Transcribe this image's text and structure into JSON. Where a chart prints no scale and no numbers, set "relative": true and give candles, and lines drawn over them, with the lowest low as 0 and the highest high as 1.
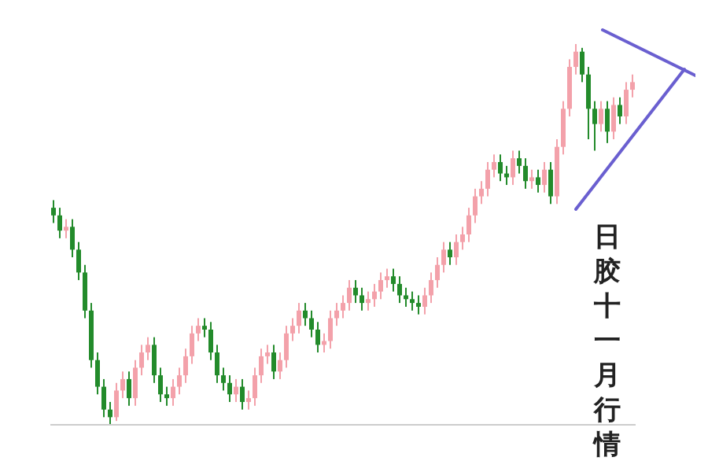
{
  "chart_data": {
    "type": "candlestick",
    "relative": true,
    "annotations": [
      "日胶十一月行情"
    ],
    "categories": [
      null,
      null,
      null,
      null,
      null,
      null,
      null,
      null,
      null,
      null,
      null,
      null,
      null,
      null,
      null,
      null,
      null,
      null,
      null,
      null,
      null,
      null,
      null,
      null,
      null,
      null,
      null,
      null,
      null,
      null,
      null,
      null,
      null,
      null,
      null,
      null,
      null,
      null,
      null,
      null,
      null,
      null,
      null,
      null,
      null,
      null,
      null,
      null,
      null,
      null,
      null,
      null,
      null,
      null,
      null,
      null,
      null,
      null,
      null,
      null,
      null,
      null,
      null,
      null,
      null,
      null,
      null,
      null,
      null,
      null,
      null,
      null,
      null,
      null,
      null,
      null,
      null,
      null,
      null,
      null,
      null,
      null,
      null,
      null,
      null,
      null,
      null,
      null,
      null,
      null,
      null,
      null,
      null
    ],
    "ohlc": [
      [
        0.57,
        0.59,
        0.53,
        0.55
      ],
      [
        0.55,
        0.57,
        0.49,
        0.51
      ],
      [
        0.51,
        0.54,
        0.49,
        0.52
      ],
      [
        0.52,
        0.54,
        0.44,
        0.46
      ],
      [
        0.46,
        0.48,
        0.38,
        0.4
      ],
      [
        0.4,
        0.42,
        0.28,
        0.3
      ],
      [
        0.3,
        0.32,
        0.15,
        0.17
      ],
      [
        0.17,
        0.19,
        0.08,
        0.1
      ],
      [
        0.1,
        0.12,
        0.02,
        0.04
      ],
      [
        0.04,
        0.06,
        0.0,
        0.02
      ],
      [
        0.02,
        0.11,
        0.01,
        0.09
      ],
      [
        0.09,
        0.14,
        0.07,
        0.12
      ],
      [
        0.12,
        0.14,
        0.05,
        0.07
      ],
      [
        0.07,
        0.17,
        0.05,
        0.15
      ],
      [
        0.15,
        0.21,
        0.13,
        0.19
      ],
      [
        0.19,
        0.23,
        0.17,
        0.21
      ],
      [
        0.21,
        0.23,
        0.11,
        0.13
      ],
      [
        0.13,
        0.15,
        0.06,
        0.08
      ],
      [
        0.08,
        0.1,
        0.05,
        0.07
      ],
      [
        0.07,
        0.12,
        0.05,
        0.1
      ],
      [
        0.1,
        0.15,
        0.08,
        0.13
      ],
      [
        0.13,
        0.2,
        0.11,
        0.18
      ],
      [
        0.18,
        0.26,
        0.16,
        0.24
      ],
      [
        0.24,
        0.28,
        0.22,
        0.26
      ],
      [
        0.26,
        0.28,
        0.23,
        0.25
      ],
      [
        0.25,
        0.27,
        0.17,
        0.19
      ],
      [
        0.19,
        0.21,
        0.11,
        0.13
      ],
      [
        0.13,
        0.15,
        0.09,
        0.11
      ],
      [
        0.11,
        0.13,
        0.06,
        0.08
      ],
      [
        0.08,
        0.12,
        0.06,
        0.1
      ],
      [
        0.1,
        0.12,
        0.04,
        0.06
      ],
      [
        0.06,
        0.09,
        0.04,
        0.07
      ],
      [
        0.07,
        0.15,
        0.05,
        0.13
      ],
      [
        0.13,
        0.2,
        0.11,
        0.18
      ],
      [
        0.18,
        0.21,
        0.16,
        0.19
      ],
      [
        0.19,
        0.21,
        0.12,
        0.14
      ],
      [
        0.14,
        0.19,
        0.12,
        0.17
      ],
      [
        0.17,
        0.26,
        0.15,
        0.24
      ],
      [
        0.24,
        0.28,
        0.22,
        0.26
      ],
      [
        0.26,
        0.32,
        0.24,
        0.3
      ],
      [
        0.3,
        0.32,
        0.26,
        0.28
      ],
      [
        0.28,
        0.3,
        0.23,
        0.25
      ],
      [
        0.25,
        0.27,
        0.19,
        0.21
      ],
      [
        0.21,
        0.24,
        0.19,
        0.22
      ],
      [
        0.22,
        0.3,
        0.2,
        0.28
      ],
      [
        0.28,
        0.32,
        0.26,
        0.3
      ],
      [
        0.3,
        0.34,
        0.28,
        0.32
      ],
      [
        0.32,
        0.38,
        0.3,
        0.36
      ],
      [
        0.36,
        0.38,
        0.32,
        0.34
      ],
      [
        0.34,
        0.36,
        0.3,
        0.32
      ],
      [
        0.32,
        0.35,
        0.3,
        0.33
      ],
      [
        0.33,
        0.37,
        0.31,
        0.35
      ],
      [
        0.35,
        0.4,
        0.33,
        0.38
      ],
      [
        0.38,
        0.41,
        0.36,
        0.39
      ],
      [
        0.39,
        0.41,
        0.35,
        0.37
      ],
      [
        0.37,
        0.39,
        0.32,
        0.34
      ],
      [
        0.34,
        0.36,
        0.31,
        0.33
      ],
      [
        0.33,
        0.35,
        0.3,
        0.32
      ],
      [
        0.32,
        0.34,
        0.29,
        0.31
      ],
      [
        0.31,
        0.36,
        0.29,
        0.34
      ],
      [
        0.34,
        0.4,
        0.32,
        0.38
      ],
      [
        0.38,
        0.44,
        0.36,
        0.42
      ],
      [
        0.42,
        0.48,
        0.4,
        0.46
      ],
      [
        0.46,
        0.48,
        0.42,
        0.44
      ],
      [
        0.44,
        0.5,
        0.42,
        0.48
      ],
      [
        0.48,
        0.52,
        0.46,
        0.5
      ],
      [
        0.5,
        0.57,
        0.48,
        0.55
      ],
      [
        0.55,
        0.62,
        0.53,
        0.6
      ],
      [
        0.6,
        0.64,
        0.58,
        0.62
      ],
      [
        0.62,
        0.69,
        0.6,
        0.67
      ],
      [
        0.67,
        0.71,
        0.65,
        0.69
      ],
      [
        0.69,
        0.71,
        0.64,
        0.66
      ],
      [
        0.66,
        0.68,
        0.63,
        0.65
      ],
      [
        0.65,
        0.72,
        0.63,
        0.7
      ],
      [
        0.7,
        0.72,
        0.66,
        0.68
      ],
      [
        0.68,
        0.7,
        0.62,
        0.64
      ],
      [
        0.64,
        0.67,
        0.62,
        0.65
      ],
      [
        0.65,
        0.67,
        0.61,
        0.63
      ],
      [
        0.63,
        0.69,
        0.61,
        0.67
      ],
      [
        0.67,
        0.69,
        0.58,
        0.6
      ],
      [
        0.6,
        0.75,
        0.58,
        0.73
      ],
      [
        0.73,
        0.85,
        0.71,
        0.83
      ],
      [
        0.83,
        0.96,
        0.81,
        0.94
      ],
      [
        0.94,
        1.0,
        0.92,
        0.98
      ],
      [
        0.98,
        0.99,
        0.9,
        0.92
      ],
      [
        0.92,
        0.94,
        0.75,
        0.83
      ],
      [
        0.83,
        0.85,
        0.72,
        0.79
      ],
      [
        0.79,
        0.85,
        0.77,
        0.83
      ],
      [
        0.83,
        0.85,
        0.74,
        0.77
      ],
      [
        0.77,
        0.86,
        0.75,
        0.84
      ],
      [
        0.84,
        0.86,
        0.79,
        0.81
      ],
      [
        0.81,
        0.9,
        0.79,
        0.88
      ],
      [
        0.88,
        0.92,
        0.86,
        0.9
      ]
    ],
    "colors": [
      "#238b2b",
      "#238b2b",
      "#f3a1aa",
      "#238b2b",
      "#238b2b",
      "#238b2b",
      "#238b2b",
      "#238b2b",
      "#238b2b",
      "#238b2b",
      "#f3a1aa",
      "#f3a1aa",
      "#238b2b",
      "#f3a1aa",
      "#f3a1aa",
      "#f3a1aa",
      "#238b2b",
      "#238b2b",
      "#238b2b",
      "#f3a1aa",
      "#f3a1aa",
      "#f3a1aa",
      "#f3a1aa",
      "#f3a1aa",
      "#238b2b",
      "#238b2b",
      "#238b2b",
      "#238b2b",
      "#238b2b",
      "#f3a1aa",
      "#238b2b",
      "#f3a1aa",
      "#f3a1aa",
      "#f3a1aa",
      "#f3a1aa",
      "#238b2b",
      "#f3a1aa",
      "#f3a1aa",
      "#f3a1aa",
      "#f3a1aa",
      "#238b2b",
      "#238b2b",
      "#238b2b",
      "#f3a1aa",
      "#f3a1aa",
      "#f3a1aa",
      "#f3a1aa",
      "#f3a1aa",
      "#238b2b",
      "#238b2b",
      "#f3a1aa",
      "#f3a1aa",
      "#f3a1aa",
      "#f3a1aa",
      "#238b2b",
      "#238b2b",
      "#238b2b",
      "#238b2b",
      "#238b2b",
      "#f3a1aa",
      "#f3a1aa",
      "#f3a1aa",
      "#f3a1aa",
      "#238b2b",
      "#f3a1aa",
      "#f3a1aa",
      "#f3a1aa",
      "#f3a1aa",
      "#f3a1aa",
      "#f3a1aa",
      "#f3a1aa",
      "#238b2b",
      "#238b2b",
      "#f3a1aa",
      "#238b2b",
      "#238b2b",
      "#f3a1aa",
      "#238b2b",
      "#f3a1aa",
      "#238b2b",
      "#f3a1aa",
      "#f3a1aa",
      "#f3a1aa",
      "#f3a1aa",
      "#238b2b",
      "#238b2b",
      "#238b2b",
      "#f3a1aa",
      "#238b2b",
      "#f3a1aa",
      "#238b2b",
      "#f3a1aa",
      "#f3a1aa"
    ]
  }
}
